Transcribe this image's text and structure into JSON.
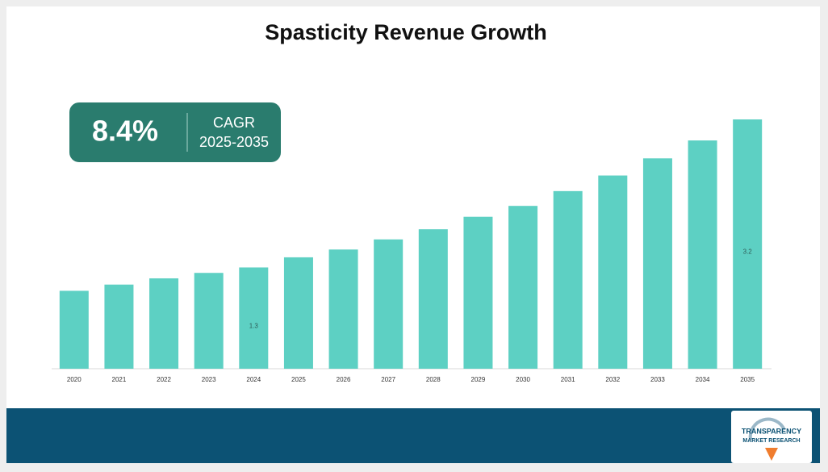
{
  "chart_data": {
    "type": "bar",
    "title": "Spasticity Revenue Growth",
    "categories": [
      "2020",
      "2021",
      "2022",
      "2023",
      "2024",
      "2025",
      "2026",
      "2027",
      "2028",
      "2029",
      "2030",
      "2031",
      "2032",
      "2033",
      "2034",
      "2035"
    ],
    "values": [
      1.0,
      1.08,
      1.16,
      1.23,
      1.3,
      1.43,
      1.53,
      1.66,
      1.79,
      1.95,
      2.09,
      2.28,
      2.48,
      2.7,
      2.93,
      3.2
    ],
    "value_labels": [
      null,
      null,
      null,
      null,
      "1.3",
      null,
      null,
      null,
      null,
      null,
      null,
      null,
      null,
      null,
      null,
      "3.2"
    ],
    "color": "#5dd0c3",
    "annotations": {
      "cagr_value": "8.4%",
      "cagr_label": "CAGR",
      "cagr_period": "2025-2035"
    }
  },
  "logo": {
    "line1": "TRANSPARENCY",
    "line2": "MARKET RESEARCH"
  }
}
